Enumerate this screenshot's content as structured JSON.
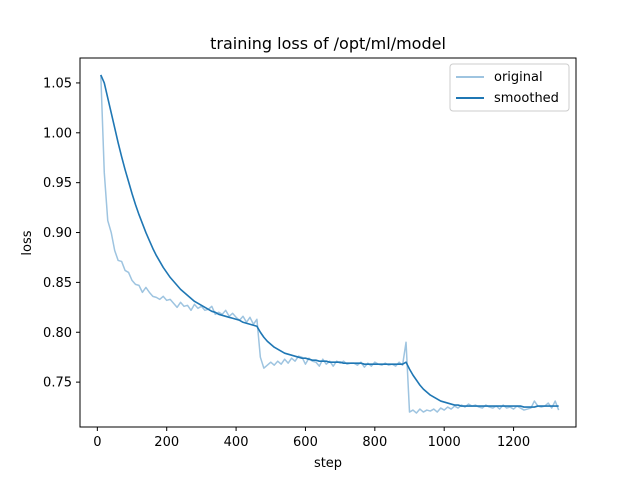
{
  "chart_data": {
    "type": "line",
    "title": "training loss of /opt/ml/model",
    "xlabel": "step",
    "ylabel": "loss",
    "xlim": [
      -50,
      1380
    ],
    "ylim": [
      0.705,
      1.075
    ],
    "xticks": [
      0,
      200,
      400,
      600,
      800,
      1000,
      1200
    ],
    "yticks": [
      0.75,
      0.8,
      0.85,
      0.9,
      0.95,
      1.0,
      1.05
    ],
    "xtick_labels": [
      "0",
      "200",
      "400",
      "600",
      "800",
      "1000",
      "1200"
    ],
    "ytick_labels": [
      "0.75",
      "0.80",
      "0.85",
      "0.90",
      "0.95",
      "1.00",
      "1.05"
    ],
    "legend_position": "top-right",
    "grid": false,
    "series": [
      {
        "name": "original",
        "color": "#9ec4e0",
        "x": [
          10,
          20,
          30,
          40,
          50,
          60,
          70,
          80,
          90,
          100,
          110,
          120,
          130,
          140,
          150,
          160,
          170,
          180,
          190,
          200,
          210,
          220,
          230,
          240,
          250,
          260,
          270,
          280,
          290,
          300,
          310,
          320,
          330,
          340,
          350,
          360,
          370,
          380,
          390,
          400,
          410,
          420,
          430,
          440,
          450,
          460,
          470,
          480,
          490,
          500,
          510,
          520,
          530,
          540,
          550,
          560,
          570,
          580,
          590,
          600,
          610,
          620,
          630,
          640,
          650,
          660,
          670,
          680,
          690,
          700,
          710,
          720,
          730,
          740,
          750,
          760,
          770,
          780,
          790,
          800,
          810,
          820,
          830,
          840,
          850,
          860,
          870,
          880,
          890,
          900,
          910,
          920,
          930,
          940,
          950,
          960,
          970,
          980,
          990,
          1000,
          1010,
          1020,
          1030,
          1040,
          1050,
          1060,
          1070,
          1080,
          1090,
          1100,
          1110,
          1120,
          1130,
          1140,
          1150,
          1160,
          1170,
          1180,
          1190,
          1200,
          1210,
          1220,
          1230,
          1240,
          1250,
          1260,
          1270,
          1280,
          1290,
          1300,
          1310,
          1320,
          1330
        ],
        "y": [
          1.058,
          0.96,
          0.912,
          0.9,
          0.882,
          0.872,
          0.871,
          0.862,
          0.86,
          0.852,
          0.848,
          0.847,
          0.84,
          0.845,
          0.84,
          0.836,
          0.835,
          0.833,
          0.836,
          0.832,
          0.833,
          0.829,
          0.825,
          0.83,
          0.826,
          0.827,
          0.822,
          0.828,
          0.824,
          0.826,
          0.822,
          0.823,
          0.826,
          0.818,
          0.82,
          0.818,
          0.822,
          0.816,
          0.819,
          0.815,
          0.812,
          0.816,
          0.81,
          0.815,
          0.808,
          0.813,
          0.775,
          0.764,
          0.767,
          0.77,
          0.767,
          0.771,
          0.768,
          0.773,
          0.769,
          0.774,
          0.771,
          0.776,
          0.775,
          0.768,
          0.774,
          0.771,
          0.77,
          0.766,
          0.773,
          0.768,
          0.771,
          0.766,
          0.771,
          0.769,
          0.771,
          0.768,
          0.769,
          0.769,
          0.767,
          0.77,
          0.765,
          0.769,
          0.766,
          0.77,
          0.768,
          0.767,
          0.769,
          0.767,
          0.768,
          0.766,
          0.77,
          0.767,
          0.79,
          0.72,
          0.722,
          0.719,
          0.723,
          0.72,
          0.722,
          0.721,
          0.723,
          0.72,
          0.724,
          0.722,
          0.725,
          0.723,
          0.726,
          0.724,
          0.727,
          0.725,
          0.728,
          0.726,
          0.727,
          0.725,
          0.724,
          0.727,
          0.725,
          0.724,
          0.726,
          0.723,
          0.727,
          0.724,
          0.725,
          0.723,
          0.726,
          0.724,
          0.722,
          0.723,
          0.724,
          0.731,
          0.726,
          0.725,
          0.726,
          0.729,
          0.724,
          0.731,
          0.722
        ]
      },
      {
        "name": "smoothed",
        "color": "#1f77b4",
        "x": [
          10,
          20,
          30,
          40,
          50,
          60,
          70,
          80,
          90,
          100,
          110,
          120,
          130,
          140,
          150,
          160,
          170,
          180,
          190,
          200,
          210,
          220,
          230,
          240,
          250,
          260,
          270,
          280,
          290,
          300,
          310,
          320,
          330,
          340,
          350,
          360,
          370,
          380,
          390,
          400,
          410,
          420,
          430,
          440,
          450,
          460,
          470,
          480,
          490,
          500,
          510,
          520,
          530,
          540,
          550,
          560,
          570,
          580,
          590,
          600,
          610,
          620,
          630,
          640,
          650,
          660,
          670,
          680,
          690,
          700,
          710,
          720,
          730,
          740,
          750,
          760,
          770,
          780,
          790,
          800,
          810,
          820,
          830,
          840,
          850,
          860,
          870,
          880,
          890,
          900,
          910,
          920,
          930,
          940,
          950,
          960,
          970,
          980,
          990,
          1000,
          1010,
          1020,
          1030,
          1040,
          1050,
          1060,
          1070,
          1080,
          1090,
          1100,
          1110,
          1120,
          1130,
          1140,
          1150,
          1160,
          1170,
          1180,
          1190,
          1200,
          1210,
          1220,
          1230,
          1240,
          1250,
          1260,
          1270,
          1280,
          1290,
          1300,
          1310,
          1320,
          1330
        ],
        "y": [
          1.058,
          1.05,
          1.035,
          1.02,
          1.005,
          0.99,
          0.976,
          0.963,
          0.951,
          0.939,
          0.928,
          0.918,
          0.909,
          0.9,
          0.892,
          0.884,
          0.877,
          0.871,
          0.865,
          0.86,
          0.855,
          0.851,
          0.847,
          0.843,
          0.84,
          0.837,
          0.834,
          0.831,
          0.829,
          0.827,
          0.825,
          0.823,
          0.821,
          0.82,
          0.818,
          0.817,
          0.816,
          0.815,
          0.814,
          0.813,
          0.812,
          0.81,
          0.809,
          0.808,
          0.807,
          0.806,
          0.8,
          0.795,
          0.791,
          0.788,
          0.785,
          0.783,
          0.781,
          0.779,
          0.778,
          0.777,
          0.776,
          0.775,
          0.774,
          0.774,
          0.773,
          0.772,
          0.772,
          0.771,
          0.771,
          0.771,
          0.77,
          0.77,
          0.77,
          0.77,
          0.769,
          0.769,
          0.769,
          0.769,
          0.769,
          0.769,
          0.768,
          0.768,
          0.768,
          0.768,
          0.768,
          0.768,
          0.768,
          0.768,
          0.768,
          0.768,
          0.768,
          0.768,
          0.77,
          0.763,
          0.757,
          0.752,
          0.747,
          0.743,
          0.74,
          0.737,
          0.735,
          0.733,
          0.731,
          0.73,
          0.729,
          0.728,
          0.727,
          0.727,
          0.726,
          0.726,
          0.726,
          0.726,
          0.726,
          0.726,
          0.726,
          0.726,
          0.726,
          0.726,
          0.726,
          0.726,
          0.726,
          0.726,
          0.726,
          0.726,
          0.726,
          0.726,
          0.725,
          0.725,
          0.725,
          0.725,
          0.726,
          0.726,
          0.726,
          0.726,
          0.726,
          0.726,
          0.726
        ]
      }
    ]
  }
}
